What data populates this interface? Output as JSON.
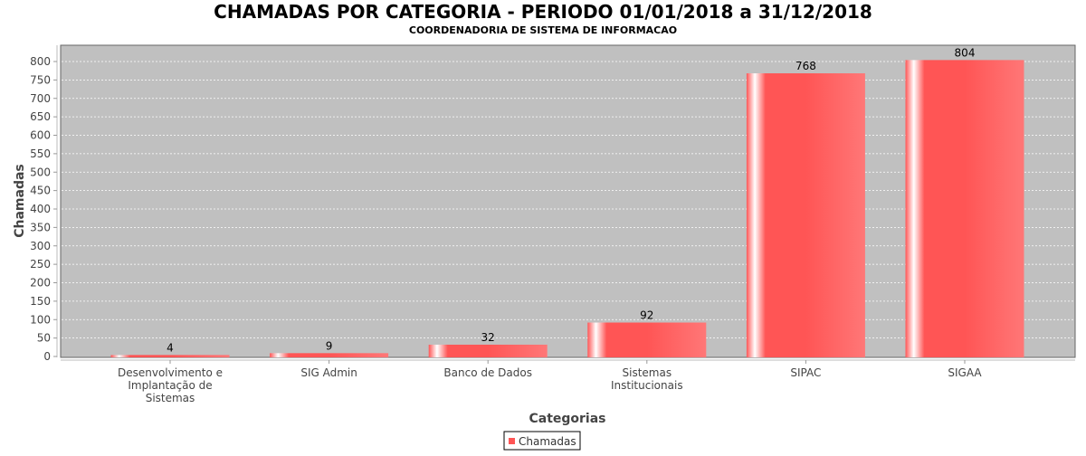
{
  "chart_data": {
    "type": "bar",
    "title": "CHAMADAS POR CATEGORIA - PERIODO 01/01/2018 a 31/12/2018",
    "subtitle": "COORDENADORIA DE SISTEMA DE INFORMACAO",
    "xlabel": "Categorias",
    "ylabel": "Chamadas",
    "categories": [
      [
        "Desenvolvimento e",
        "Implantação de",
        "Sistemas"
      ],
      [
        "SIG Admin"
      ],
      [
        "Banco de Dados"
      ],
      [
        "Sistemas",
        "Institucionais"
      ],
      [
        "SIPAC"
      ],
      [
        "SIGAA"
      ]
    ],
    "series": [
      {
        "name": "Chamadas",
        "values": [
          4,
          9,
          32,
          92,
          768,
          804
        ]
      }
    ],
    "ylim": [
      0,
      844
    ],
    "yticks": [
      0,
      50,
      100,
      150,
      200,
      250,
      300,
      350,
      400,
      450,
      500,
      550,
      600,
      650,
      700,
      750,
      800
    ],
    "grid": true,
    "legend": "bottom-center",
    "colors": {
      "bar": "#ff5555",
      "plot_bg": "#c0c0c0",
      "grid": "#ffffff"
    }
  }
}
